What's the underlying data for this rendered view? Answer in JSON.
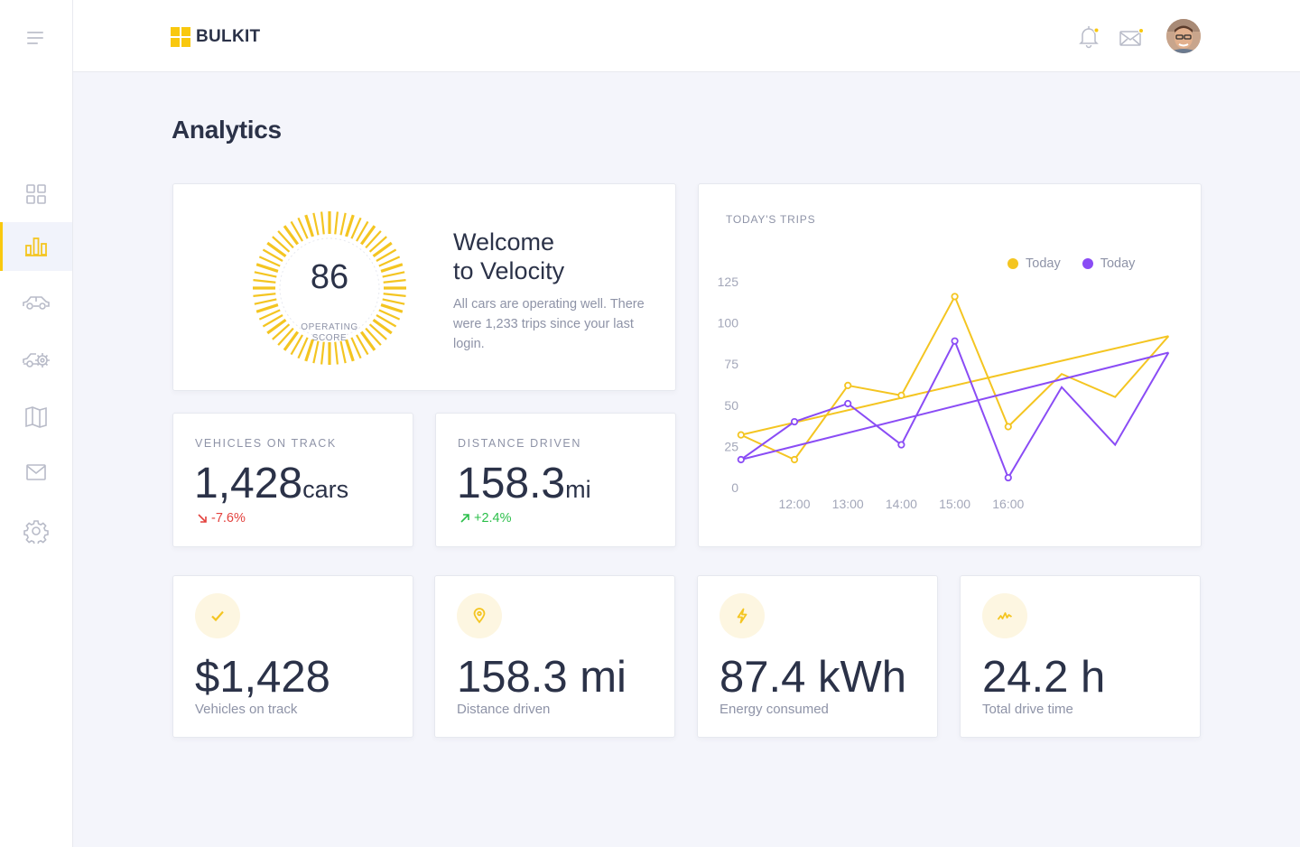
{
  "app": {
    "logo_text": "BULKIT"
  },
  "page": {
    "title": "Analytics"
  },
  "sidebar": {
    "items": [
      {
        "name": "dashboard",
        "icon": "grid-icon",
        "active": false
      },
      {
        "name": "analytics",
        "icon": "bar-chart-icon",
        "active": true
      },
      {
        "name": "vehicles",
        "icon": "car-icon",
        "active": false
      },
      {
        "name": "service",
        "icon": "car-gear-icon",
        "active": false
      },
      {
        "name": "map",
        "icon": "map-icon",
        "active": false
      },
      {
        "name": "messages",
        "icon": "mail-icon",
        "active": false
      },
      {
        "name": "settings",
        "icon": "gear-icon",
        "active": false
      }
    ]
  },
  "header": {
    "icons": [
      "bell-icon",
      "mail-icon",
      "avatar"
    ]
  },
  "welcome": {
    "score": "86",
    "score_label": "OPERATING SCORE",
    "title_line1": "Welcome",
    "title_line2": "to Velocity",
    "text": "All cars are operating well. There were 1,233 trips since your last login."
  },
  "stats": [
    {
      "label": "VEHICLES ON TRACK",
      "value": "1,428",
      "unit": "cars",
      "change": "-7.6%",
      "direction": "down"
    },
    {
      "label": "DISTANCE DRIVEN",
      "value": "158.3",
      "unit": "mi",
      "change": "+2.4%",
      "direction": "up"
    }
  ],
  "trips": {
    "title": "TODAY'S TRIPS"
  },
  "chart_data": {
    "type": "line",
    "title": "TODAY'S TRIPS",
    "x_ticks": [
      "12:00",
      "13:00",
      "14:00",
      "15:00",
      "16:00"
    ],
    "y_ticks": [
      0,
      25,
      50,
      75,
      100,
      125
    ],
    "ylim": [
      0,
      125
    ],
    "legend_position": "top-right",
    "series": [
      {
        "name": "Today",
        "color": "#f4c521",
        "x": [
          11.0,
          12.0,
          13.0,
          14.0,
          15.0,
          16.0,
          17.0,
          18.0,
          19.0
        ],
        "y": [
          32,
          17,
          62,
          56,
          116,
          37,
          69,
          55,
          92
        ],
        "markers": [
          true,
          true,
          true,
          true,
          true,
          true,
          false,
          false,
          false
        ],
        "trend": {
          "x": [
            11.0,
            19.0
          ],
          "y": [
            32,
            92
          ]
        }
      },
      {
        "name": "Today",
        "color": "#8a4cf5",
        "x": [
          11.0,
          12.0,
          13.0,
          14.0,
          15.0,
          16.0,
          17.0,
          18.0,
          19.0
        ],
        "y": [
          17,
          40,
          51,
          26,
          89,
          6,
          61,
          26,
          82
        ],
        "markers": [
          true,
          true,
          true,
          true,
          true,
          true,
          false,
          false,
          false
        ],
        "trend": {
          "x": [
            11.0,
            19.0
          ],
          "y": [
            17,
            82
          ]
        }
      }
    ]
  },
  "kpis": [
    {
      "icon": "check-icon",
      "value": "$1,428",
      "label": "Vehicles on track"
    },
    {
      "icon": "location-pin-icon",
      "value": "158.3 mi",
      "label": "Distance driven"
    },
    {
      "icon": "lightning-icon",
      "value": "87.4 kWh",
      "label": "Energy consumed"
    },
    {
      "icon": "activity-icon",
      "value": "24.2 h",
      "label": "Total drive time"
    }
  ],
  "colors": {
    "accent": "#f9c80e",
    "text": "#2b3248",
    "muted": "#8e93a7",
    "negative": "#e3413d",
    "positive": "#2bbf4a",
    "series1": "#f4c521",
    "series2": "#8a4cf5"
  }
}
